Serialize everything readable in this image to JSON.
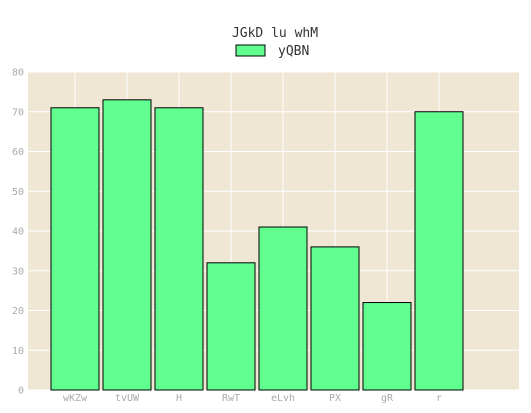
{
  "chart_data": {
    "type": "bar",
    "title": "JGkD lu whM",
    "xlabel": "",
    "ylabel": "",
    "categories": [
      "wKZw",
      "tvUW",
      "H",
      "RwT",
      "eLvh",
      "PX",
      "gR",
      "r"
    ],
    "series": [
      {
        "name": "yQBN",
        "values": [
          71,
          73,
          71,
          32,
          41,
          36,
          22,
          70
        ],
        "color": "#60ff90"
      }
    ],
    "ylim": [
      0,
      80
    ],
    "yticks": [
      0,
      10,
      20,
      30,
      40,
      50,
      60,
      70,
      80
    ],
    "grid": true,
    "legend_position": "top-center",
    "colors": {
      "plot_background": "#efe7d4",
      "grid": "#ffffff",
      "bar_edge": "#000000",
      "tick_label": "#aaaaaa"
    }
  }
}
